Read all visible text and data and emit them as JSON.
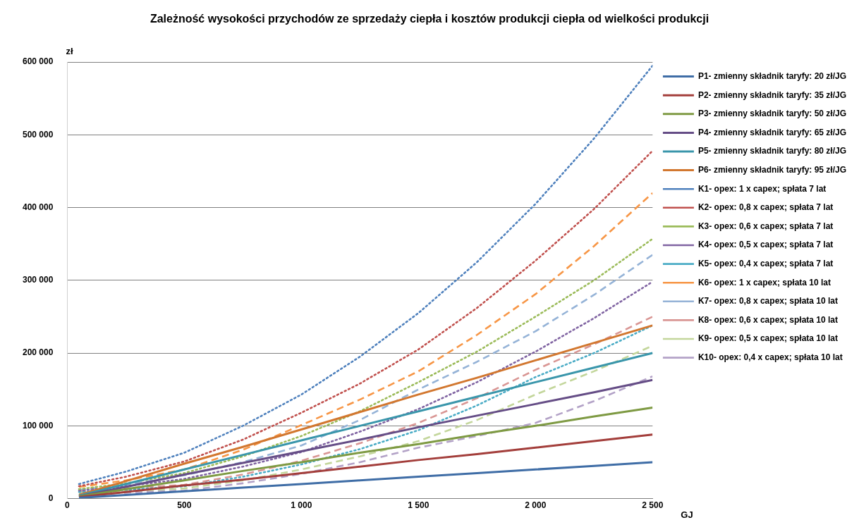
{
  "chart_data": {
    "type": "line",
    "title": "Zależność wysokości przychodów ze sprzedaży ciepła i kosztów produkcji ciepła od wielkości produkcji",
    "xlabel": "GJ",
    "ylabel": "zł",
    "x": [
      50,
      250,
      500,
      750,
      1000,
      1250,
      1500,
      1750,
      2000,
      2250,
      2500
    ],
    "xlim": [
      0,
      2500
    ],
    "xticks": [
      0,
      500,
      {
        "value": 1000,
        "label": "1 000"
      },
      {
        "value": 1500,
        "label": "1 500"
      },
      {
        "value": 2000,
        "label": "2 000"
      },
      {
        "value": 2500,
        "label": "2 500"
      }
    ],
    "ylim": [
      0,
      600000
    ],
    "yticks": [
      0,
      {
        "value": 100000,
        "label": "100 000"
      },
      {
        "value": 200000,
        "label": "200 000"
      },
      {
        "value": 300000,
        "label": "300 000"
      },
      {
        "value": 400000,
        "label": "400 000"
      },
      {
        "value": 500000,
        "label": "500 000"
      },
      {
        "value": 600000,
        "label": "600 000"
      }
    ],
    "grid": "y",
    "legend": "top right",
    "marker": "none",
    "series": [
      {
        "name": "P1- zmienny składnik taryfy: 20 zł/JG",
        "color": "#3f6da6",
        "line_style": "solid",
        "values": [
          1000,
          5000,
          10000,
          15000,
          20000,
          25000,
          30000,
          35000,
          40000,
          45000,
          50000
        ]
      },
      {
        "name": "P2- zmienny składnik taryfy: 35 zł/JG",
        "color": "#a33e3b",
        "line_style": "solid",
        "values": [
          2000,
          9000,
          18000,
          26000,
          35000,
          44000,
          53000,
          61000,
          70000,
          79000,
          88000
        ]
      },
      {
        "name": "P3- zmienny składnik taryfy: 50 zł/JG",
        "color": "#7e9a43",
        "line_style": "solid",
        "values": [
          3000,
          13000,
          25000,
          38000,
          50000,
          63000,
          75000,
          88000,
          100000,
          113000,
          125000
        ]
      },
      {
        "name": "P4- zmienny składnik taryfy: 65 zł/JG",
        "color": "#654d86",
        "line_style": "solid",
        "values": [
          3000,
          16000,
          33000,
          49000,
          65000,
          81000,
          98000,
          114000,
          130000,
          146000,
          163000
        ]
      },
      {
        "name": "P5- zmienny składnik taryfy: 80 zł/JG",
        "color": "#3a96ab",
        "line_style": "solid",
        "values": [
          4000,
          20000,
          40000,
          60000,
          80000,
          100000,
          120000,
          140000,
          160000,
          180000,
          200000
        ]
      },
      {
        "name": "P6- zmienny składnik taryfy: 95 zł/JG",
        "color": "#d2772f",
        "line_style": "solid",
        "values": [
          5000,
          24000,
          48000,
          71000,
          95000,
          119000,
          143000,
          166000,
          190000,
          214000,
          238000
        ]
      },
      {
        "name": "K1- opex: 1 x capex; spłata 7 lat",
        "color": "#4f81bd",
        "line_style": "dotted",
        "values": [
          20000,
          37000,
          63000,
          100000,
          143000,
          195000,
          255000,
          325000,
          405000,
          495000,
          595000
        ]
      },
      {
        "name": "K2- opex: 0,8 x capex; spłata 7 lat",
        "color": "#c0504d",
        "line_style": "dotted",
        "values": [
          17000,
          30000,
          51000,
          81000,
          118000,
          158000,
          205000,
          262000,
          327000,
          398000,
          478000
        ]
      },
      {
        "name": "K3- opex: 0,6 x capex; spłata 7 lat",
        "color": "#9bbb59",
        "line_style": "dotted",
        "values": [
          13000,
          21000,
          35000,
          58000,
          86000,
          120000,
          160000,
          202000,
          250000,
          300000,
          357000
        ]
      },
      {
        "name": "K4- opex: 0,5 x capex; spłata 7 lat",
        "color": "#8064a2",
        "line_style": "dotted",
        "values": [
          11000,
          17000,
          27000,
          44000,
          64000,
          92000,
          123000,
          160000,
          202000,
          248000,
          298000
        ]
      },
      {
        "name": "K5- opex: 0,4 x capex; spłata 7 lat",
        "color": "#4bacc6",
        "line_style": "dotted",
        "values": [
          9000,
          12000,
          17000,
          30000,
          47000,
          68000,
          94000,
          128000,
          167000,
          200000,
          238000
        ]
      },
      {
        "name": "K6- opex: 1 x capex; spłata 10 lat",
        "color": "#f79646",
        "line_style": "dashed",
        "values": [
          16000,
          25000,
          40000,
          67000,
          101000,
          136000,
          175000,
          225000,
          281000,
          347000,
          420000
        ]
      },
      {
        "name": "K7- opex: 0,8 x capex; spłata 10 lat",
        "color": "#95b3d7",
        "line_style": "dashed",
        "values": [
          12000,
          19000,
          32000,
          50000,
          73000,
          108000,
          150000,
          188000,
          230000,
          280000,
          335000
        ]
      },
      {
        "name": "K8- opex: 0,6 x capex; spłata 10 lat",
        "color": "#d99694",
        "line_style": "dashed",
        "values": [
          10000,
          14000,
          19000,
          33000,
          52000,
          76000,
          104000,
          138000,
          177000,
          212000,
          250000
        ]
      },
      {
        "name": "K9- opex: 0,5 x capex; spłata 10 lat",
        "color": "#c3d69b",
        "line_style": "dashed",
        "values": [
          8000,
          10000,
          14000,
          25000,
          40000,
          58000,
          79000,
          108000,
          143000,
          175000,
          210000
        ]
      },
      {
        "name": "K10- opex: 0,4 x capex; spłata 10 lat",
        "color": "#b3a2c7",
        "line_style": "dashed",
        "values": [
          6000,
          8000,
          11000,
          21000,
          34000,
          50000,
          70000,
          86000,
          104000,
          134000,
          168000
        ]
      }
    ]
  }
}
